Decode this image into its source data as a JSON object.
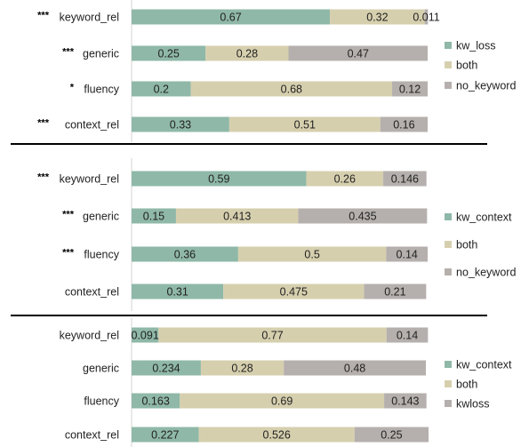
{
  "colors": {
    "green": "#8fb8a8",
    "tan": "#d6cfae",
    "gray": "#b5b0ad"
  },
  "chart_data": [
    {
      "type": "bar",
      "stacked": true,
      "orientation": "horizontal",
      "categories": [
        "keyword_rel",
        "generic",
        "fluency",
        "context_rel"
      ],
      "significance": [
        "***",
        "***",
        "*",
        "***"
      ],
      "series": [
        {
          "name": "kw_loss",
          "color": "#8fb8a8",
          "values": [
            0.67,
            0.25,
            0.2,
            0.33
          ],
          "labels": [
            "0.67",
            "0.25",
            "0.2",
            "0.33"
          ]
        },
        {
          "name": "both",
          "color": "#d6cfae",
          "values": [
            0.32,
            0.28,
            0.68,
            0.51
          ],
          "labels": [
            "0.32",
            "0.28",
            "0.68",
            "0.51"
          ]
        },
        {
          "name": "no_keyword",
          "color": "#b5b0ad",
          "values": [
            0.011,
            0.47,
            0.12,
            0.16
          ],
          "labels": [
            "0.011",
            "0.47",
            "0.12",
            "0.16"
          ]
        }
      ],
      "xlim": [
        0,
        1
      ],
      "legend": "right"
    },
    {
      "type": "bar",
      "stacked": true,
      "orientation": "horizontal",
      "categories": [
        "keyword_rel",
        "generic",
        "fluency",
        "context_rel"
      ],
      "significance": [
        "***",
        "***",
        "***",
        ""
      ],
      "series": [
        {
          "name": "kw_context",
          "color": "#8fb8a8",
          "values": [
            0.59,
            0.15,
            0.36,
            0.31
          ],
          "labels": [
            "0.59",
            "0.15",
            "0.36",
            "0.31"
          ]
        },
        {
          "name": "both",
          "color": "#d6cfae",
          "values": [
            0.26,
            0.413,
            0.5,
            0.475
          ],
          "labels": [
            "0.26",
            "0.413",
            "0.5",
            "0.475"
          ]
        },
        {
          "name": "no_keyword",
          "color": "#b5b0ad",
          "values": [
            0.146,
            0.435,
            0.14,
            0.21
          ],
          "labels": [
            "0.146",
            "0.435",
            "0.14",
            "0.21"
          ]
        }
      ],
      "xlim": [
        0,
        1
      ],
      "legend": "right"
    },
    {
      "type": "bar",
      "stacked": true,
      "orientation": "horizontal",
      "categories": [
        "keyword_rel",
        "generic",
        "fluency",
        "context_rel"
      ],
      "significance": [
        "",
        "",
        "",
        ""
      ],
      "series": [
        {
          "name": "kw_context",
          "color": "#8fb8a8",
          "values": [
            0.091,
            0.234,
            0.163,
            0.227
          ],
          "labels": [
            "0.091",
            "0.234",
            "0.163",
            "0.227"
          ]
        },
        {
          "name": "both",
          "color": "#d6cfae",
          "values": [
            0.77,
            0.28,
            0.69,
            0.526
          ],
          "labels": [
            "0.77",
            "0.28",
            "0.69",
            "0.526"
          ]
        },
        {
          "name": "kwloss",
          "color": "#b5b0ad",
          "values": [
            0.14,
            0.48,
            0.143,
            0.25
          ],
          "labels": [
            "0.14",
            "0.48",
            "0.143",
            "0.25"
          ]
        }
      ],
      "xlim": [
        0,
        1
      ],
      "legend": "right"
    }
  ]
}
